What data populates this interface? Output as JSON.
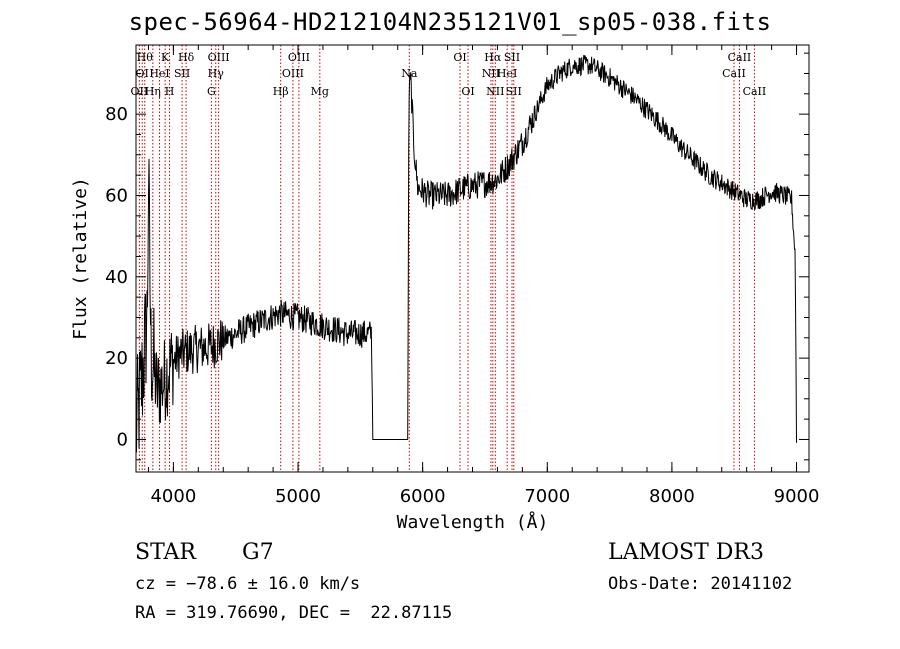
{
  "title": "spec-56964-HD212104N235121V01_sp05-038.fits",
  "info": {
    "class_label": "STAR",
    "subclass_label": "G7",
    "survey_label": "LAMOST DR3",
    "cz_text": "cz = −78.6 ± 16.0 km/s",
    "obs_date_text": "Obs-Date: 20141102",
    "coords_text": "RA = 319.76690, DEC =  22.87115"
  },
  "chart_data": {
    "type": "line",
    "xlabel": "Wavelength (Å)",
    "ylabel": "Flux (relative)",
    "xlim": [
      3700,
      9100
    ],
    "ylim": [
      -8,
      97
    ],
    "xticks": [
      4000,
      5000,
      6000,
      7000,
      8000,
      9000
    ],
    "yticks": [
      0,
      20,
      40,
      60,
      80
    ],
    "grid": false,
    "line_color": "#000000",
    "marker_color": "#cc0000",
    "spectrum_anchors": [
      [
        3700,
        2
      ],
      [
        3750,
        15
      ],
      [
        3790,
        30
      ],
      [
        3800,
        64
      ],
      [
        3820,
        22
      ],
      [
        3870,
        12
      ],
      [
        3920,
        14
      ],
      [
        3970,
        18
      ],
      [
        4050,
        21
      ],
      [
        4150,
        22
      ],
      [
        4300,
        23
      ],
      [
        4500,
        26
      ],
      [
        4700,
        29
      ],
      [
        4850,
        31
      ],
      [
        5000,
        30
      ],
      [
        5200,
        28
      ],
      [
        5400,
        26
      ],
      [
        5590,
        26
      ],
      [
        5600,
        0
      ],
      [
        5880,
        0
      ],
      [
        5890,
        86
      ],
      [
        5905,
        88
      ],
      [
        5930,
        72
      ],
      [
        5960,
        62
      ],
      [
        6050,
        60
      ],
      [
        6200,
        60
      ],
      [
        6350,
        62
      ],
      [
        6500,
        63
      ],
      [
        6600,
        64
      ],
      [
        6700,
        68
      ],
      [
        6800,
        73
      ],
      [
        6900,
        80
      ],
      [
        7000,
        87
      ],
      [
        7100,
        90
      ],
      [
        7200,
        92
      ],
      [
        7350,
        92
      ],
      [
        7500,
        89
      ],
      [
        7700,
        84
      ],
      [
        7900,
        78
      ],
      [
        8100,
        71
      ],
      [
        8300,
        65
      ],
      [
        8500,
        61
      ],
      [
        8600,
        59
      ],
      [
        8700,
        59
      ],
      [
        8800,
        61
      ],
      [
        8900,
        60
      ],
      [
        8960,
        59
      ],
      [
        8990,
        45
      ],
      [
        9000,
        0
      ]
    ],
    "lines": [
      {
        "wave": 3727,
        "name": "OII",
        "row": 3
      },
      {
        "wave": 3750,
        "name": "OI",
        "row": 2
      },
      {
        "wave": 3770,
        "name": "Hθ",
        "row": 1
      },
      {
        "wave": 3835,
        "name": "Hη",
        "row": 3
      },
      {
        "wave": 3889,
        "name": "HeI",
        "row": 2
      },
      {
        "wave": 3934,
        "name": "K",
        "row": 1
      },
      {
        "wave": 3969,
        "name": "H",
        "row": 3
      },
      {
        "wave": 4070,
        "name": "SII",
        "row": 2
      },
      {
        "wave": 4102,
        "name": "Hδ",
        "row": 1
      },
      {
        "wave": 4305,
        "name": "G",
        "row": 3
      },
      {
        "wave": 4340,
        "name": "Hγ",
        "row": 2
      },
      {
        "wave": 4363,
        "name": "OIII",
        "row": 1
      },
      {
        "wave": 4861,
        "name": "Hβ",
        "row": 3
      },
      {
        "wave": 4959,
        "name": "OIII",
        "row": 2
      },
      {
        "wave": 5007,
        "name": "OIII",
        "row": 1
      },
      {
        "wave": 5175,
        "name": "Mg",
        "row": 3
      },
      {
        "wave": 5893,
        "name": "Na",
        "row": 2
      },
      {
        "wave": 6300,
        "name": "OI",
        "row": 1
      },
      {
        "wave": 6364,
        "name": "OI",
        "row": 3
      },
      {
        "wave": 6548,
        "name": "NII",
        "row": 2
      },
      {
        "wave": 6563,
        "name": "Hα",
        "row": 1
      },
      {
        "wave": 6583,
        "name": "NII",
        "row": 3
      },
      {
        "wave": 6678,
        "name": "HeI",
        "row": 2
      },
      {
        "wave": 6717,
        "name": "SII",
        "row": 1
      },
      {
        "wave": 6731,
        "name": "SII",
        "row": 3
      },
      {
        "wave": 8498,
        "name": "CaII",
        "row": 2
      },
      {
        "wave": 8542,
        "name": "CaII",
        "row": 1
      },
      {
        "wave": 8662,
        "name": "CaII",
        "row": 3
      }
    ]
  }
}
